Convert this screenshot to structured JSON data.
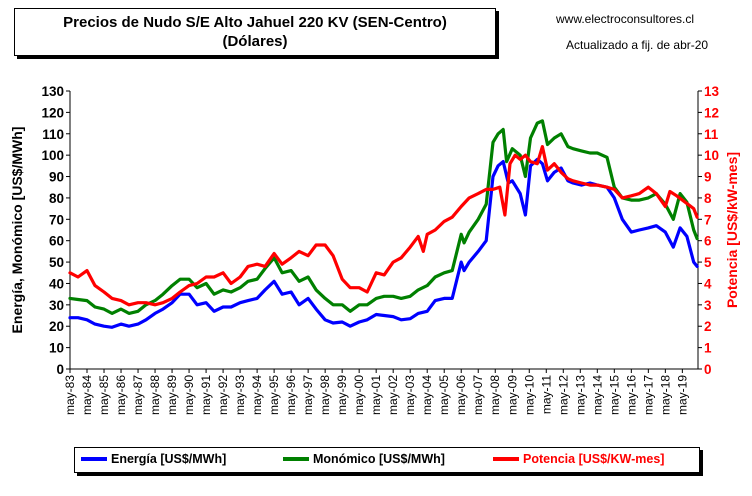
{
  "header": {
    "title_line1": "Precios de Nudo S/E Alto Jahuel 220 KV (SEN-Centro)",
    "title_line2": "(Dólares)",
    "website": "www.electroconsultores.cl",
    "updated": "Actualizado a fij. de abr-20"
  },
  "colors": {
    "energia": "#0000ff",
    "monomico": "#008000",
    "potencia": "#ff0000"
  },
  "chart_data": {
    "type": "line",
    "ylabel": "Energía, Monómico [US$/MWh]",
    "y2label": "Potencia [US$/kW-mes]",
    "ylim": [
      0,
      130
    ],
    "y2lim": [
      0,
      13
    ],
    "yticks": [
      "0",
      "10",
      "20",
      "30",
      "40",
      "50",
      "60",
      "70",
      "80",
      "90",
      "100",
      "110",
      "120",
      "130"
    ],
    "y2ticks": [
      "0",
      "1",
      "2",
      "3",
      "4",
      "5",
      "6",
      "7",
      "8",
      "9",
      "10",
      "11",
      "12",
      "13"
    ],
    "xlim": [
      1983.33,
      2020.25
    ],
    "x_ticks": [
      "may-83",
      "may-84",
      "may-85",
      "may-86",
      "may-87",
      "may-88",
      "may-89",
      "may-90",
      "may-91",
      "may-92",
      "may-93",
      "may-94",
      "may-95",
      "may-96",
      "may-97",
      "may-98",
      "may-99",
      "may-00",
      "may-01",
      "may-02",
      "may-03",
      "may-04",
      "may-05",
      "may-06",
      "may-07",
      "may-08",
      "may-09",
      "may-10",
      "may-11",
      "may-12",
      "may-13",
      "may-14",
      "may-15",
      "may-16",
      "may-17",
      "may-18",
      "may-19"
    ],
    "legend": [
      "Energía [US$/MWh]",
      "Monómico [US$/MWh]",
      "Potencia [US$/KW-mes]"
    ],
    "series": [
      {
        "name": "Energía [US$/MWh]",
        "axis": "left",
        "points": [
          [
            1983.33,
            24
          ],
          [
            1983.8,
            24
          ],
          [
            1984.33,
            23
          ],
          [
            1984.8,
            21
          ],
          [
            1985.33,
            20
          ],
          [
            1985.8,
            19.5
          ],
          [
            1986.33,
            21
          ],
          [
            1986.8,
            20
          ],
          [
            1987.33,
            21
          ],
          [
            1987.8,
            23
          ],
          [
            1988.33,
            26
          ],
          [
            1988.8,
            28
          ],
          [
            1989.33,
            31
          ],
          [
            1989.8,
            35
          ],
          [
            1990.33,
            35
          ],
          [
            1990.8,
            30
          ],
          [
            1991.33,
            31
          ],
          [
            1991.8,
            27
          ],
          [
            1992.33,
            29
          ],
          [
            1992.8,
            29
          ],
          [
            1993.33,
            31
          ],
          [
            1993.8,
            32
          ],
          [
            1994.33,
            33
          ],
          [
            1994.8,
            37
          ],
          [
            1995.33,
            41
          ],
          [
            1995.8,
            35
          ],
          [
            1996.33,
            36
          ],
          [
            1996.8,
            30
          ],
          [
            1997.33,
            33
          ],
          [
            1997.8,
            28
          ],
          [
            1998.33,
            23
          ],
          [
            1998.8,
            21.5
          ],
          [
            1999.33,
            22
          ],
          [
            1999.8,
            20
          ],
          [
            2000.33,
            22
          ],
          [
            2000.8,
            23
          ],
          [
            2001.33,
            25.5
          ],
          [
            2001.8,
            25
          ],
          [
            2002.33,
            24.5
          ],
          [
            2002.8,
            23
          ],
          [
            2003.33,
            23.5
          ],
          [
            2003.8,
            26
          ],
          [
            2004.33,
            27
          ],
          [
            2004.8,
            32
          ],
          [
            2005.33,
            33
          ],
          [
            2005.8,
            33
          ],
          [
            2006.33,
            50
          ],
          [
            2006.5,
            46
          ],
          [
            2006.8,
            50
          ],
          [
            2007.33,
            55
          ],
          [
            2007.8,
            60
          ],
          [
            2008.2,
            90
          ],
          [
            2008.5,
            95
          ],
          [
            2008.8,
            97
          ],
          [
            2009.1,
            87
          ],
          [
            2009.33,
            88
          ],
          [
            2009.8,
            82
          ],
          [
            2010.1,
            72
          ],
          [
            2010.4,
            95
          ],
          [
            2010.8,
            98
          ],
          [
            2011.1,
            96
          ],
          [
            2011.4,
            88
          ],
          [
            2011.8,
            92
          ],
          [
            2012.2,
            94
          ],
          [
            2012.6,
            88
          ],
          [
            2012.9,
            87
          ],
          [
            2013.4,
            86
          ],
          [
            2013.9,
            87
          ],
          [
            2014.33,
            86
          ],
          [
            2014.9,
            85
          ],
          [
            2015.33,
            80
          ],
          [
            2015.8,
            70
          ],
          [
            2016.33,
            64
          ],
          [
            2016.8,
            65
          ],
          [
            2017.33,
            66
          ],
          [
            2017.8,
            67
          ],
          [
            2018.33,
            64
          ],
          [
            2018.8,
            57
          ],
          [
            2019.2,
            66
          ],
          [
            2019.6,
            62
          ],
          [
            2020.0,
            50
          ],
          [
            2020.2,
            48
          ]
        ]
      },
      {
        "name": "Monómico [US$/MWh]",
        "axis": "left",
        "points": [
          [
            1983.33,
            33
          ],
          [
            1983.8,
            32.5
          ],
          [
            1984.33,
            32
          ],
          [
            1984.8,
            29
          ],
          [
            1985.33,
            28
          ],
          [
            1985.8,
            26
          ],
          [
            1986.33,
            28
          ],
          [
            1986.8,
            26
          ],
          [
            1987.33,
            27
          ],
          [
            1987.8,
            30
          ],
          [
            1988.33,
            32
          ],
          [
            1988.8,
            35
          ],
          [
            1989.33,
            39
          ],
          [
            1989.8,
            42
          ],
          [
            1990.33,
            42
          ],
          [
            1990.8,
            38
          ],
          [
            1991.33,
            40
          ],
          [
            1991.8,
            35
          ],
          [
            1992.33,
            37
          ],
          [
            1992.8,
            36
          ],
          [
            1993.33,
            38
          ],
          [
            1993.8,
            41
          ],
          [
            1994.33,
            42
          ],
          [
            1994.8,
            47
          ],
          [
            1995.33,
            52
          ],
          [
            1995.8,
            45
          ],
          [
            1996.33,
            46
          ],
          [
            1996.8,
            41
          ],
          [
            1997.33,
            43
          ],
          [
            1997.8,
            37
          ],
          [
            1998.33,
            33
          ],
          [
            1998.8,
            30
          ],
          [
            1999.33,
            30
          ],
          [
            1999.8,
            27
          ],
          [
            2000.33,
            30
          ],
          [
            2000.8,
            30
          ],
          [
            2001.33,
            33
          ],
          [
            2001.8,
            34
          ],
          [
            2002.33,
            34
          ],
          [
            2002.8,
            33
          ],
          [
            2003.33,
            34
          ],
          [
            2003.8,
            37
          ],
          [
            2004.33,
            39
          ],
          [
            2004.8,
            43
          ],
          [
            2005.33,
            45
          ],
          [
            2005.8,
            46
          ],
          [
            2006.33,
            63
          ],
          [
            2006.5,
            59
          ],
          [
            2006.8,
            64
          ],
          [
            2007.33,
            70
          ],
          [
            2007.8,
            77
          ],
          [
            2008.2,
            106
          ],
          [
            2008.5,
            110
          ],
          [
            2008.8,
            112
          ],
          [
            2009.0,
            97
          ],
          [
            2009.33,
            103
          ],
          [
            2009.8,
            100
          ],
          [
            2010.1,
            90
          ],
          [
            2010.4,
            108
          ],
          [
            2010.8,
            115
          ],
          [
            2011.1,
            116
          ],
          [
            2011.4,
            105
          ],
          [
            2011.8,
            108
          ],
          [
            2012.2,
            110
          ],
          [
            2012.6,
            104
          ],
          [
            2012.9,
            103
          ],
          [
            2013.4,
            102
          ],
          [
            2013.9,
            101
          ],
          [
            2014.33,
            101
          ],
          [
            2014.9,
            99
          ],
          [
            2015.33,
            85
          ],
          [
            2015.8,
            80
          ],
          [
            2016.33,
            79
          ],
          [
            2016.8,
            79
          ],
          [
            2017.33,
            80
          ],
          [
            2017.8,
            82
          ],
          [
            2018.33,
            77
          ],
          [
            2018.8,
            70
          ],
          [
            2019.2,
            82
          ],
          [
            2019.6,
            78
          ],
          [
            2020.0,
            65
          ],
          [
            2020.2,
            61
          ]
        ]
      },
      {
        "name": "Potencia [US$/KW-mes]",
        "axis": "right",
        "points": [
          [
            1983.33,
            4.5
          ],
          [
            1983.8,
            4.3
          ],
          [
            1984.33,
            4.6
          ],
          [
            1984.8,
            3.9
          ],
          [
            1985.33,
            3.6
          ],
          [
            1985.8,
            3.3
          ],
          [
            1986.33,
            3.2
          ],
          [
            1986.8,
            3.0
          ],
          [
            1987.33,
            3.1
          ],
          [
            1987.8,
            3.1
          ],
          [
            1988.33,
            3.0
          ],
          [
            1988.8,
            3.1
          ],
          [
            1989.33,
            3.3
          ],
          [
            1989.8,
            3.6
          ],
          [
            1990.33,
            3.9
          ],
          [
            1990.8,
            4.0
          ],
          [
            1991.33,
            4.3
          ],
          [
            1991.8,
            4.3
          ],
          [
            1992.33,
            4.5
          ],
          [
            1992.8,
            4.0
          ],
          [
            1993.33,
            4.3
          ],
          [
            1993.8,
            4.8
          ],
          [
            1994.33,
            4.9
          ],
          [
            1994.8,
            4.8
          ],
          [
            1995.33,
            5.4
          ],
          [
            1995.8,
            4.9
          ],
          [
            1996.33,
            5.2
          ],
          [
            1996.8,
            5.5
          ],
          [
            1997.33,
            5.3
          ],
          [
            1997.8,
            5.8
          ],
          [
            1998.33,
            5.8
          ],
          [
            1998.8,
            5.3
          ],
          [
            1999.33,
            4.2
          ],
          [
            1999.8,
            3.8
          ],
          [
            2000.33,
            3.8
          ],
          [
            2000.8,
            3.6
          ],
          [
            2001.33,
            4.5
          ],
          [
            2001.8,
            4.4
          ],
          [
            2002.33,
            5.0
          ],
          [
            2002.8,
            5.2
          ],
          [
            2003.33,
            5.7
          ],
          [
            2003.8,
            6.2
          ],
          [
            2004.1,
            5.5
          ],
          [
            2004.33,
            6.3
          ],
          [
            2004.8,
            6.5
          ],
          [
            2005.33,
            6.9
          ],
          [
            2005.8,
            7.1
          ],
          [
            2006.33,
            7.6
          ],
          [
            2006.8,
            8.0
          ],
          [
            2007.33,
            8.2
          ],
          [
            2007.8,
            8.4
          ],
          [
            2008.2,
            8.4
          ],
          [
            2008.6,
            8.5
          ],
          [
            2008.9,
            7.2
          ],
          [
            2009.2,
            9.6
          ],
          [
            2009.5,
            10.0
          ],
          [
            2009.8,
            9.8
          ],
          [
            2010.1,
            10.0
          ],
          [
            2010.4,
            9.7
          ],
          [
            2010.8,
            9.6
          ],
          [
            2011.1,
            10.4
          ],
          [
            2011.4,
            9.3
          ],
          [
            2011.8,
            9.6
          ],
          [
            2012.2,
            9.2
          ],
          [
            2012.6,
            8.9
          ],
          [
            2012.9,
            8.8
          ],
          [
            2013.4,
            8.7
          ],
          [
            2013.9,
            8.6
          ],
          [
            2014.33,
            8.6
          ],
          [
            2014.9,
            8.5
          ],
          [
            2015.33,
            8.4
          ],
          [
            2015.8,
            8.0
          ],
          [
            2016.33,
            8.1
          ],
          [
            2016.8,
            8.2
          ],
          [
            2017.33,
            8.5
          ],
          [
            2017.8,
            8.2
          ],
          [
            2018.33,
            7.6
          ],
          [
            2018.6,
            8.3
          ],
          [
            2019.0,
            8.1
          ],
          [
            2019.5,
            7.8
          ],
          [
            2020.0,
            7.5
          ],
          [
            2020.2,
            7.1
          ]
        ]
      }
    ]
  }
}
